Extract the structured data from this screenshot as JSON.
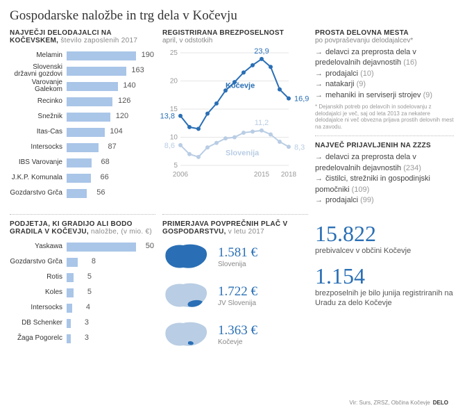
{
  "title": "Gospodarske naložbe in trg dela v Kočevju",
  "colors": {
    "bar_fill": "#a9c5e8",
    "line_primary": "#2a6fb5",
    "line_secondary": "#b9cde4",
    "text_muted": "#888888",
    "grid": "#e6e6e6"
  },
  "employers": {
    "title": "NAJVEČJI DELODAJALCI NA KOČEVSKEM,",
    "subtitle": "število zaposlenih 2017",
    "max": 190,
    "bar_color": "#a9c5e8",
    "rows": [
      {
        "label": "Melamin",
        "value": 190
      },
      {
        "label": "Slovenski državni gozdovi",
        "value": 163
      },
      {
        "label": "Varovanje Galekom",
        "value": 140
      },
      {
        "label": "Recinko",
        "value": 126
      },
      {
        "label": "Snežnik",
        "value": 120
      },
      {
        "label": "Itas-Cas",
        "value": 104
      },
      {
        "label": "Intersocks",
        "value": 87
      },
      {
        "label": "IBS Varovanje",
        "value": 68
      },
      {
        "label": "J.K.P. Komunala",
        "value": 66
      },
      {
        "label": "Gozdarstvo Grča",
        "value": 56
      }
    ]
  },
  "unemployment": {
    "title": "REGISTRIRANA BREZPOSELNOST",
    "subtitle": "april, v odstotkih",
    "x_ticks": [
      "2006",
      "2015",
      "2018"
    ],
    "y_ticks": [
      5,
      10,
      15,
      20,
      25
    ],
    "ylim": [
      5,
      25
    ],
    "series": [
      {
        "name": "Kočevje",
        "color": "#2a6fb5",
        "points": [
          {
            "x": 2006,
            "y": 13.8,
            "label": "13,8",
            "label_pos": "left"
          },
          {
            "x": 2007,
            "y": 11.8
          },
          {
            "x": 2008,
            "y": 11.5
          },
          {
            "x": 2009,
            "y": 14.2
          },
          {
            "x": 2010,
            "y": 16.0
          },
          {
            "x": 2011,
            "y": 18.3
          },
          {
            "x": 2012,
            "y": 19.8
          },
          {
            "x": 2013,
            "y": 21.5
          },
          {
            "x": 2014,
            "y": 22.8
          },
          {
            "x": 2015,
            "y": 23.9,
            "label": "23,9",
            "label_pos": "top"
          },
          {
            "x": 2016,
            "y": 22.5
          },
          {
            "x": 2017,
            "y": 18.5
          },
          {
            "x": 2018,
            "y": 16.9,
            "label": "16,9",
            "label_pos": "right"
          }
        ]
      },
      {
        "name": "Slovenija",
        "color": "#b9cde4",
        "points": [
          {
            "x": 2006,
            "y": 8.6,
            "label": "8,6",
            "label_pos": "left"
          },
          {
            "x": 2007,
            "y": 7.0
          },
          {
            "x": 2008,
            "y": 6.5
          },
          {
            "x": 2009,
            "y": 8.2
          },
          {
            "x": 2010,
            "y": 9.0
          },
          {
            "x": 2011,
            "y": 9.8
          },
          {
            "x": 2012,
            "y": 10.0
          },
          {
            "x": 2013,
            "y": 10.8
          },
          {
            "x": 2014,
            "y": 11.0
          },
          {
            "x": 2015,
            "y": 11.2,
            "label": "11,2",
            "label_pos": "top"
          },
          {
            "x": 2016,
            "y": 10.5
          },
          {
            "x": 2017,
            "y": 9.2
          },
          {
            "x": 2018,
            "y": 8.3,
            "label": "8,3",
            "label_pos": "right"
          }
        ]
      }
    ]
  },
  "vacancies": {
    "title": "PROSTA DELOVNA MESTA",
    "subtitle": "po povpraševanju delodajalcev*",
    "items": [
      {
        "text": "delavci za preprosta dela v predelovalnih dejavnostih",
        "count": "(16)"
      },
      {
        "text": "prodajalci",
        "count": "(10)"
      },
      {
        "text": "natakarji",
        "count": "(9)"
      },
      {
        "text": "mehaniki in serviserji strojev",
        "count": "(9)"
      }
    ],
    "footnote": "* Dejanskih potreb po delavcih in sodelovanju z delodajalci je več, saj od leta 2013 za nekatere delodajalce ni več obvezna prijava prostih delovnih mest na zavodu."
  },
  "zzzs": {
    "title": "NAJVEČ PRIJAVLJENIH NA ZZZS",
    "items": [
      {
        "text": "delavci za preprosta dela v predelovalnih dejavnostih",
        "count": "(234)"
      },
      {
        "text": "čistilci, strežniki in gospodinjski pomočniki",
        "count": "(109)"
      },
      {
        "text": "prodajalci",
        "count": "(99)"
      }
    ]
  },
  "investments": {
    "title": "PODJETJA, KI GRADIJO ALI BODO GRADILA V KOČEVJU,",
    "subtitle": "naložbe, (v mio. €)",
    "max": 50,
    "bar_color": "#a9c5e8",
    "rows": [
      {
        "label": "Yaskawa",
        "value": 50
      },
      {
        "label": "Gozdarstvo Grča",
        "value": 8
      },
      {
        "label": "Rotis",
        "value": 5
      },
      {
        "label": "Koles",
        "value": 5
      },
      {
        "label": "Intersocks",
        "value": 4
      },
      {
        "label": "DB Schenker",
        "value": 3
      },
      {
        "label": "Žaga Pogorelc",
        "value": 3
      }
    ]
  },
  "wages": {
    "title": "PRIMERJAVA POVPREČNIH PLAČ V GOSPODARSTVU,",
    "subtitle": "v letu 2017",
    "rows": [
      {
        "region": "Slovenija",
        "value": "1.581 €",
        "highlight": "all"
      },
      {
        "region": "JV Slovenija",
        "value": "1.722 €",
        "highlight": "se"
      },
      {
        "region": "Kočevje",
        "value": "1.363 €",
        "highlight": "kocevje"
      }
    ]
  },
  "stats": {
    "pop": {
      "num": "15.822",
      "desc": "prebivalcev v občini Kočevje"
    },
    "unemp": {
      "num": "1.154",
      "desc": "brezposelnih je bilo junija registriranih na Uradu za delo Kočevje"
    }
  },
  "source": {
    "text": "Vir: Surs, ZRSZ, Občina Kočevje",
    "brand": "DELO"
  }
}
